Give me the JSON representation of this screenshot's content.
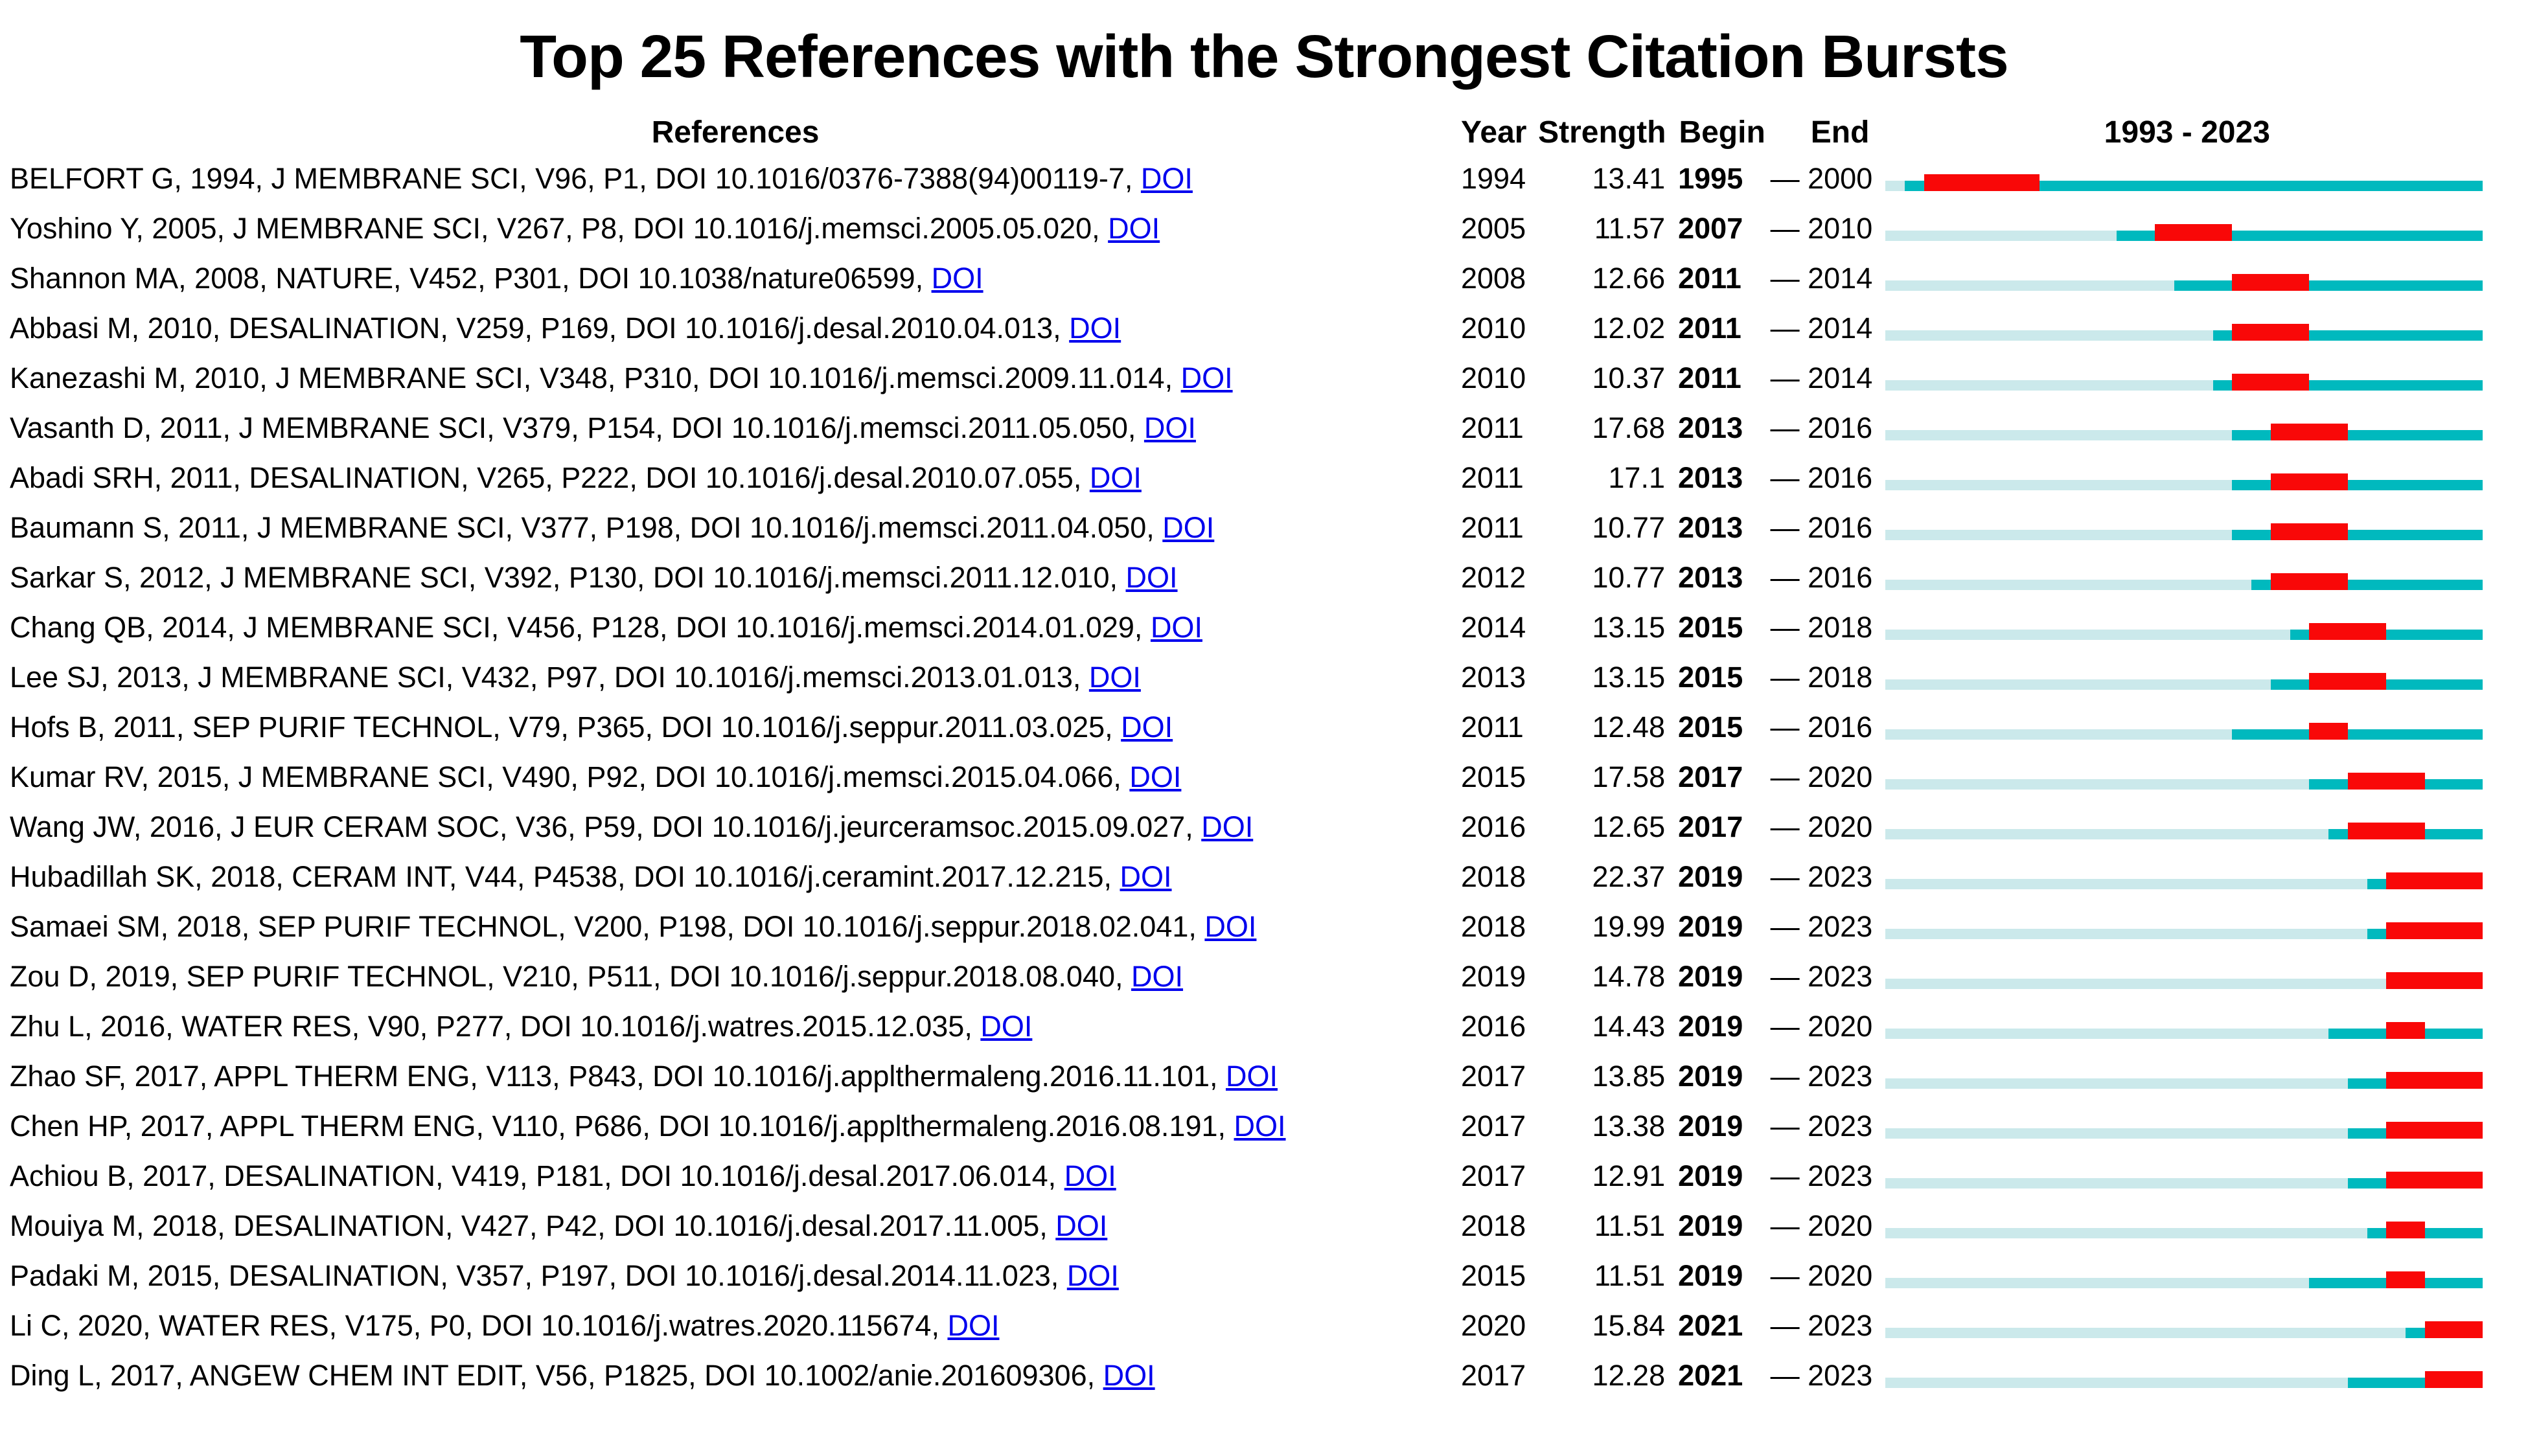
{
  "colors": {
    "burst_red": "#F90808",
    "active_teal": "#00B9BE",
    "pale_teal": "#CBE9EB",
    "link_blue": "#0000EE",
    "text": "#000000",
    "background": "#FFFFFF"
  },
  "chart_data": {
    "type": "burst_timeline_table",
    "title": "Top 25 References with the Strongest Citation Bursts",
    "columns": {
      "references": "References",
      "year": "Year",
      "strength": "Strength",
      "begin": "Begin",
      "end": "End"
    },
    "timeline": {
      "start_year": 1993,
      "end_year": 2023,
      "header_label": "1993 - 2023"
    },
    "range_separator": "—",
    "doi_link_label": "DOI",
    "rows": [
      {
        "reference": "BELFORT G, 1994, J MEMBRANE SCI, V96, P1, DOI 10.1016/0376-7388(94)00119-7,",
        "year": 1994,
        "strength": "13.41",
        "begin": 1995,
        "end": 2000
      },
      {
        "reference": "Yoshino Y, 2005, J MEMBRANE SCI, V267, P8, DOI 10.1016/j.memsci.2005.05.020,",
        "year": 2005,
        "strength": "11.57",
        "begin": 2007,
        "end": 2010
      },
      {
        "reference": "Shannon MA, 2008, NATURE, V452, P301, DOI 10.1038/nature06599,",
        "year": 2008,
        "strength": "12.66",
        "begin": 2011,
        "end": 2014
      },
      {
        "reference": "Abbasi M, 2010, DESALINATION, V259, P169, DOI 10.1016/j.desal.2010.04.013,",
        "year": 2010,
        "strength": "12.02",
        "begin": 2011,
        "end": 2014
      },
      {
        "reference": "Kanezashi M, 2010, J MEMBRANE SCI, V348, P310, DOI 10.1016/j.memsci.2009.11.014,",
        "year": 2010,
        "strength": "10.37",
        "begin": 2011,
        "end": 2014
      },
      {
        "reference": "Vasanth D, 2011, J MEMBRANE SCI, V379, P154, DOI 10.1016/j.memsci.2011.05.050,",
        "year": 2011,
        "strength": "17.68",
        "begin": 2013,
        "end": 2016
      },
      {
        "reference": "Abadi SRH, 2011, DESALINATION, V265, P222, DOI 10.1016/j.desal.2010.07.055,",
        "year": 2011,
        "strength": "17.1",
        "begin": 2013,
        "end": 2016
      },
      {
        "reference": "Baumann S, 2011, J MEMBRANE SCI, V377, P198, DOI 10.1016/j.memsci.2011.04.050,",
        "year": 2011,
        "strength": "10.77",
        "begin": 2013,
        "end": 2016
      },
      {
        "reference": "Sarkar S, 2012, J MEMBRANE SCI, V392, P130, DOI 10.1016/j.memsci.2011.12.010,",
        "year": 2012,
        "strength": "10.77",
        "begin": 2013,
        "end": 2016
      },
      {
        "reference": "Chang QB, 2014, J MEMBRANE SCI, V456, P128, DOI 10.1016/j.memsci.2014.01.029,",
        "year": 2014,
        "strength": "13.15",
        "begin": 2015,
        "end": 2018
      },
      {
        "reference": "Lee SJ, 2013, J MEMBRANE SCI, V432, P97, DOI 10.1016/j.memsci.2013.01.013,",
        "year": 2013,
        "strength": "13.15",
        "begin": 2015,
        "end": 2018
      },
      {
        "reference": "Hofs B, 2011, SEP PURIF TECHNOL, V79, P365, DOI 10.1016/j.seppur.2011.03.025,",
        "year": 2011,
        "strength": "12.48",
        "begin": 2015,
        "end": 2016
      },
      {
        "reference": "Kumar RV, 2015, J MEMBRANE SCI, V490, P92, DOI 10.1016/j.memsci.2015.04.066,",
        "year": 2015,
        "strength": "17.58",
        "begin": 2017,
        "end": 2020
      },
      {
        "reference": "Wang JW, 2016, J EUR CERAM SOC, V36, P59, DOI 10.1016/j.jeurceramsoc.2015.09.027,",
        "year": 2016,
        "strength": "12.65",
        "begin": 2017,
        "end": 2020
      },
      {
        "reference": "Hubadillah SK, 2018, CERAM INT, V44, P4538, DOI 10.1016/j.ceramint.2017.12.215,",
        "year": 2018,
        "strength": "22.37",
        "begin": 2019,
        "end": 2023
      },
      {
        "reference": "Samaei SM, 2018, SEP PURIF TECHNOL, V200, P198, DOI 10.1016/j.seppur.2018.02.041,",
        "year": 2018,
        "strength": "19.99",
        "begin": 2019,
        "end": 2023
      },
      {
        "reference": "Zou D, 2019, SEP PURIF TECHNOL, V210, P511, DOI 10.1016/j.seppur.2018.08.040,",
        "year": 2019,
        "strength": "14.78",
        "begin": 2019,
        "end": 2023
      },
      {
        "reference": "Zhu L, 2016, WATER RES, V90, P277, DOI 10.1016/j.watres.2015.12.035,",
        "year": 2016,
        "strength": "14.43",
        "begin": 2019,
        "end": 2020
      },
      {
        "reference": "Zhao SF, 2017, APPL THERM ENG, V113, P843, DOI 10.1016/j.applthermaleng.2016.11.101,",
        "year": 2017,
        "strength": "13.85",
        "begin": 2019,
        "end": 2023
      },
      {
        "reference": "Chen HP, 2017, APPL THERM ENG, V110, P686, DOI 10.1016/j.applthermaleng.2016.08.191,",
        "year": 2017,
        "strength": "13.38",
        "begin": 2019,
        "end": 2023
      },
      {
        "reference": "Achiou B, 2017, DESALINATION, V419, P181, DOI 10.1016/j.desal.2017.06.014,",
        "year": 2017,
        "strength": "12.91",
        "begin": 2019,
        "end": 2023
      },
      {
        "reference": "Mouiya M, 2018, DESALINATION, V427, P42, DOI 10.1016/j.desal.2017.11.005,",
        "year": 2018,
        "strength": "11.51",
        "begin": 2019,
        "end": 2020
      },
      {
        "reference": "Padaki M, 2015, DESALINATION, V357, P197, DOI 10.1016/j.desal.2014.11.023,",
        "year": 2015,
        "strength": "11.51",
        "begin": 2019,
        "end": 2020
      },
      {
        "reference": "Li C, 2020, WATER RES, V175, P0, DOI 10.1016/j.watres.2020.115674,",
        "year": 2020,
        "strength": "15.84",
        "begin": 2021,
        "end": 2023
      },
      {
        "reference": "Ding L, 2017, ANGEW CHEM INT EDIT, V56, P1825, DOI 10.1002/anie.201609306,",
        "year": 2017,
        "strength": "12.28",
        "begin": 2021,
        "end": 2023
      }
    ]
  }
}
